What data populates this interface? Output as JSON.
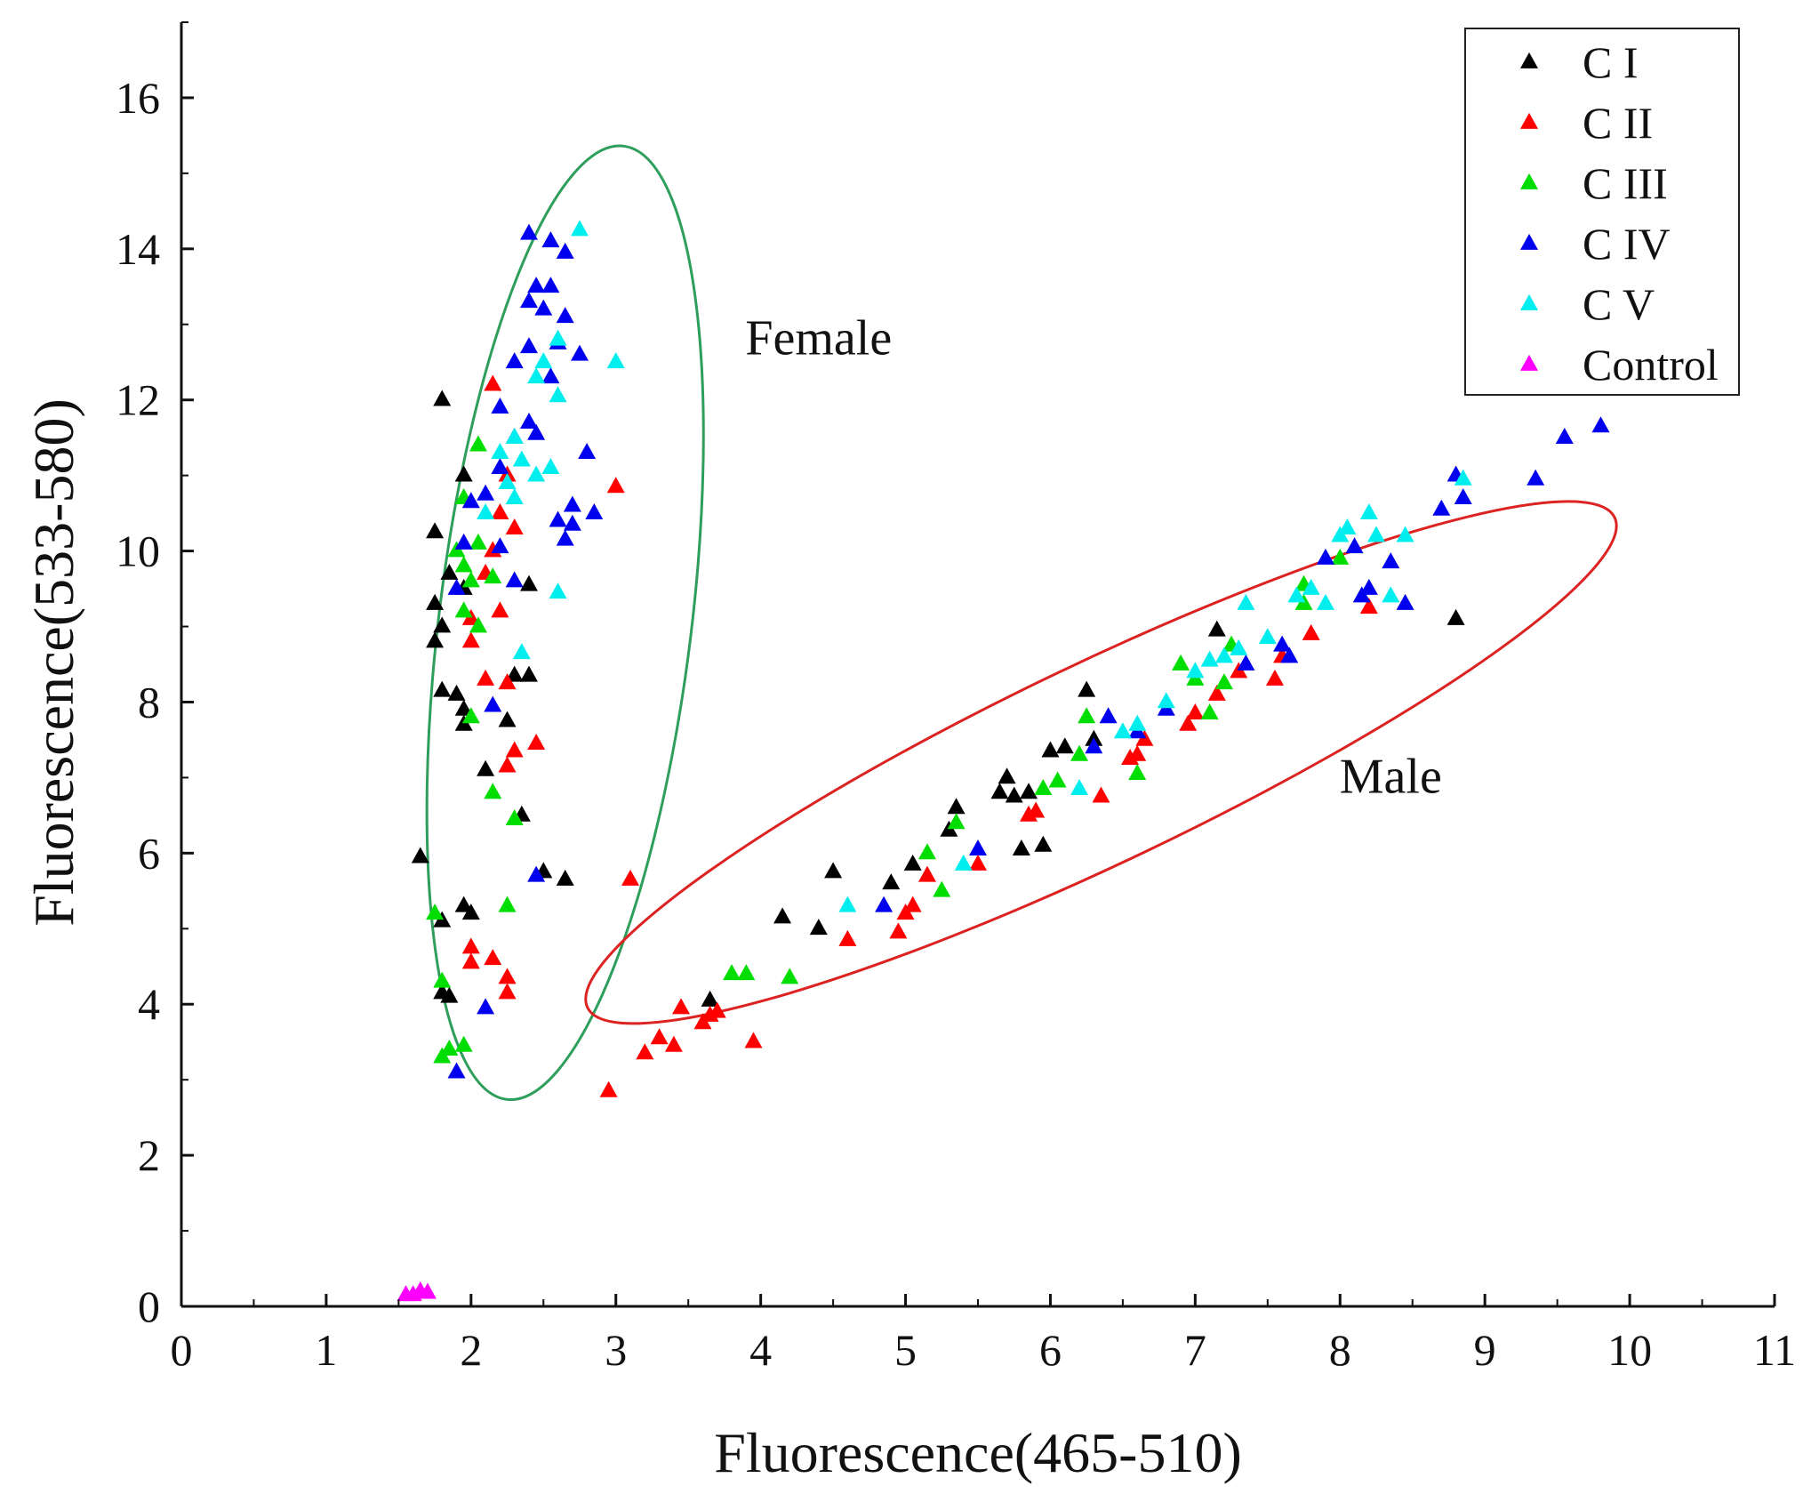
{
  "chart_data": {
    "type": "scatter",
    "title": "",
    "xlabel": "Fluorescence(465-510)",
    "ylabel": "Fluorescence(533-580)",
    "xlim": [
      0,
      11
    ],
    "ylim": [
      0,
      17
    ],
    "xticks": [
      0,
      1,
      2,
      3,
      4,
      5,
      6,
      7,
      8,
      9,
      10,
      11
    ],
    "yticks": [
      0,
      2,
      4,
      6,
      8,
      10,
      12,
      14,
      16
    ],
    "legend_position": "top-right",
    "marker": "triangle",
    "series": [
      {
        "name": "C I",
        "color": "#000000",
        "points": [
          [
            1.8,
            12.0
          ],
          [
            1.95,
            11.0
          ],
          [
            1.75,
            10.25
          ],
          [
            1.85,
            9.7
          ],
          [
            1.95,
            9.5
          ],
          [
            2.4,
            9.55
          ],
          [
            1.75,
            9.3
          ],
          [
            1.8,
            9.0
          ],
          [
            1.75,
            8.8
          ],
          [
            1.8,
            8.15
          ],
          [
            1.9,
            8.1
          ],
          [
            1.95,
            7.9
          ],
          [
            2.25,
            7.75
          ],
          [
            1.95,
            7.7
          ],
          [
            2.3,
            8.35
          ],
          [
            2.4,
            8.35
          ],
          [
            2.1,
            7.1
          ],
          [
            2.35,
            6.5
          ],
          [
            1.65,
            5.95
          ],
          [
            2.5,
            5.75
          ],
          [
            2.65,
            5.65
          ],
          [
            1.95,
            5.3
          ],
          [
            2.0,
            5.2
          ],
          [
            1.8,
            5.1
          ],
          [
            1.8,
            4.15
          ],
          [
            1.85,
            4.1
          ],
          [
            7.15,
            8.95
          ],
          [
            6.25,
            8.15
          ],
          [
            8.8,
            9.1
          ],
          [
            6.0,
            7.35
          ],
          [
            6.1,
            7.4
          ],
          [
            6.3,
            7.5
          ],
          [
            5.7,
            7.0
          ],
          [
            5.65,
            6.8
          ],
          [
            5.75,
            6.75
          ],
          [
            5.85,
            6.8
          ],
          [
            5.35,
            6.6
          ],
          [
            5.3,
            6.3
          ],
          [
            5.8,
            6.05
          ],
          [
            5.95,
            6.1
          ],
          [
            5.05,
            5.85
          ],
          [
            4.5,
            5.75
          ],
          [
            4.9,
            5.6
          ],
          [
            4.15,
            5.15
          ],
          [
            4.4,
            5.0
          ],
          [
            3.65,
            4.05
          ]
        ]
      },
      {
        "name": "C II",
        "color": "#ff0000",
        "points": [
          [
            2.15,
            12.2
          ],
          [
            2.25,
            11.0
          ],
          [
            2.2,
            10.5
          ],
          [
            2.3,
            10.3
          ],
          [
            2.15,
            10.0
          ],
          [
            2.1,
            9.7
          ],
          [
            2.2,
            9.2
          ],
          [
            2.0,
            9.1
          ],
          [
            2.0,
            8.8
          ],
          [
            2.1,
            8.3
          ],
          [
            2.25,
            8.25
          ],
          [
            2.45,
            7.45
          ],
          [
            2.3,
            7.35
          ],
          [
            2.25,
            7.15
          ],
          [
            2.0,
            4.75
          ],
          [
            2.0,
            4.55
          ],
          [
            2.15,
            4.6
          ],
          [
            2.25,
            4.35
          ],
          [
            2.25,
            4.15
          ],
          [
            3.0,
            10.85
          ],
          [
            3.1,
            5.65
          ],
          [
            2.95,
            2.85
          ],
          [
            3.2,
            3.35
          ],
          [
            3.3,
            3.55
          ],
          [
            3.4,
            3.45
          ],
          [
            3.45,
            3.95
          ],
          [
            3.6,
            3.75
          ],
          [
            3.65,
            3.85
          ],
          [
            3.7,
            3.9
          ],
          [
            3.95,
            3.5
          ],
          [
            4.6,
            4.85
          ],
          [
            4.95,
            4.95
          ],
          [
            5.0,
            5.2
          ],
          [
            5.05,
            5.3
          ],
          [
            5.15,
            5.7
          ],
          [
            5.5,
            5.85
          ],
          [
            5.85,
            6.5
          ],
          [
            5.9,
            6.55
          ],
          [
            6.35,
            6.75
          ],
          [
            6.55,
            7.25
          ],
          [
            6.6,
            7.3
          ],
          [
            6.65,
            7.5
          ],
          [
            6.95,
            7.7
          ],
          [
            7.0,
            7.85
          ],
          [
            7.15,
            8.1
          ],
          [
            7.3,
            8.4
          ],
          [
            7.55,
            8.3
          ],
          [
            7.6,
            8.6
          ],
          [
            7.8,
            8.9
          ],
          [
            8.2,
            9.25
          ]
        ]
      },
      {
        "name": "C III",
        "color": "#00dd00",
        "points": [
          [
            2.05,
            11.4
          ],
          [
            1.95,
            10.7
          ],
          [
            2.05,
            10.1
          ],
          [
            1.9,
            10.0
          ],
          [
            1.95,
            9.8
          ],
          [
            2.0,
            9.6
          ],
          [
            2.15,
            9.65
          ],
          [
            2.05,
            9.0
          ],
          [
            1.95,
            9.2
          ],
          [
            2.0,
            7.8
          ],
          [
            2.15,
            6.8
          ],
          [
            2.3,
            6.45
          ],
          [
            1.75,
            5.2
          ],
          [
            2.25,
            5.3
          ],
          [
            1.8,
            4.3
          ],
          [
            1.8,
            3.3
          ],
          [
            1.85,
            3.4
          ],
          [
            1.95,
            3.45
          ],
          [
            3.8,
            4.4
          ],
          [
            3.9,
            4.4
          ],
          [
            4.2,
            4.35
          ],
          [
            5.25,
            5.5
          ],
          [
            5.15,
            6.0
          ],
          [
            5.35,
            6.4
          ],
          [
            5.95,
            6.85
          ],
          [
            6.05,
            6.95
          ],
          [
            6.2,
            7.3
          ],
          [
            6.25,
            7.8
          ],
          [
            6.6,
            7.05
          ],
          [
            6.9,
            8.5
          ],
          [
            7.0,
            8.3
          ],
          [
            7.1,
            7.85
          ],
          [
            7.2,
            8.25
          ],
          [
            7.25,
            8.75
          ],
          [
            7.75,
            9.3
          ],
          [
            7.75,
            9.55
          ],
          [
            8.0,
            9.9
          ]
        ]
      },
      {
        "name": "C IV",
        "color": "#0000ee",
        "points": [
          [
            2.4,
            14.2
          ],
          [
            2.55,
            14.1
          ],
          [
            2.65,
            13.95
          ],
          [
            2.45,
            13.5
          ],
          [
            2.55,
            13.5
          ],
          [
            2.4,
            13.3
          ],
          [
            2.5,
            13.2
          ],
          [
            2.65,
            13.1
          ],
          [
            2.6,
            12.75
          ],
          [
            2.75,
            12.6
          ],
          [
            2.4,
            12.7
          ],
          [
            2.3,
            12.5
          ],
          [
            2.55,
            12.3
          ],
          [
            2.2,
            11.9
          ],
          [
            2.4,
            11.7
          ],
          [
            2.3,
            11.5
          ],
          [
            2.45,
            11.55
          ],
          [
            2.8,
            11.3
          ],
          [
            2.2,
            11.1
          ],
          [
            2.1,
            10.75
          ],
          [
            2.0,
            10.65
          ],
          [
            2.7,
            10.6
          ],
          [
            2.85,
            10.5
          ],
          [
            2.6,
            10.4
          ],
          [
            2.7,
            10.35
          ],
          [
            2.65,
            10.15
          ],
          [
            2.2,
            10.05
          ],
          [
            1.95,
            10.1
          ],
          [
            1.9,
            9.5
          ],
          [
            2.3,
            9.6
          ],
          [
            2.15,
            7.95
          ],
          [
            2.45,
            5.7
          ],
          [
            2.1,
            3.95
          ],
          [
            1.9,
            3.1
          ],
          [
            4.85,
            5.3
          ],
          [
            5.5,
            6.05
          ],
          [
            6.3,
            7.4
          ],
          [
            6.4,
            7.8
          ],
          [
            6.6,
            7.6
          ],
          [
            6.8,
            7.9
          ],
          [
            7.35,
            8.5
          ],
          [
            7.6,
            8.75
          ],
          [
            7.65,
            8.6
          ],
          [
            7.9,
            9.9
          ],
          [
            8.1,
            10.05
          ],
          [
            8.15,
            9.4
          ],
          [
            8.2,
            9.5
          ],
          [
            8.35,
            9.85
          ],
          [
            8.45,
            9.3
          ],
          [
            8.7,
            10.55
          ],
          [
            8.8,
            11.0
          ],
          [
            8.85,
            10.7
          ],
          [
            9.35,
            10.95
          ],
          [
            9.55,
            11.5
          ],
          [
            9.8,
            11.65
          ]
        ]
      },
      {
        "name": "C V",
        "color": "#00eeee",
        "points": [
          [
            2.75,
            14.25
          ],
          [
            2.6,
            12.8
          ],
          [
            2.5,
            12.5
          ],
          [
            2.45,
            12.3
          ],
          [
            2.6,
            12.05
          ],
          [
            3.0,
            12.5
          ],
          [
            2.3,
            11.5
          ],
          [
            2.2,
            11.3
          ],
          [
            2.35,
            11.2
          ],
          [
            2.45,
            11.0
          ],
          [
            2.55,
            11.1
          ],
          [
            2.25,
            10.9
          ],
          [
            2.1,
            10.5
          ],
          [
            2.3,
            10.7
          ],
          [
            2.6,
            9.45
          ],
          [
            2.35,
            8.65
          ],
          [
            4.6,
            5.3
          ],
          [
            5.4,
            5.85
          ],
          [
            6.2,
            6.85
          ],
          [
            6.5,
            7.6
          ],
          [
            6.6,
            7.7
          ],
          [
            6.8,
            8.0
          ],
          [
            7.0,
            8.4
          ],
          [
            7.1,
            8.55
          ],
          [
            7.2,
            8.6
          ],
          [
            7.3,
            8.7
          ],
          [
            7.35,
            9.3
          ],
          [
            7.5,
            8.85
          ],
          [
            7.7,
            9.4
          ],
          [
            7.8,
            9.5
          ],
          [
            7.9,
            9.3
          ],
          [
            8.0,
            10.2
          ],
          [
            8.05,
            10.3
          ],
          [
            8.2,
            10.5
          ],
          [
            8.25,
            10.2
          ],
          [
            8.35,
            9.4
          ],
          [
            8.45,
            10.2
          ],
          [
            8.85,
            10.95
          ]
        ]
      },
      {
        "name": "Control",
        "color": "#ff00ff",
        "points": [
          [
            1.55,
            0.15
          ],
          [
            1.6,
            0.15
          ],
          [
            1.65,
            0.2
          ],
          [
            1.7,
            0.18
          ]
        ]
      }
    ],
    "annotations": [
      {
        "text": "Female",
        "x": 4.4,
        "y": 12.6,
        "ellipse": {
          "cx": 2.65,
          "cy": 9.05,
          "rx": 1.3,
          "ry": 6.35,
          "color": "#2e9e5b"
        }
      },
      {
        "text": "Male",
        "x": 8.35,
        "y": 6.8,
        "ellipse": {
          "cx": 6.35,
          "cy": 7.2,
          "rx": 4.75,
          "ry": 1.4,
          "color": "#dd2222"
        }
      }
    ]
  }
}
